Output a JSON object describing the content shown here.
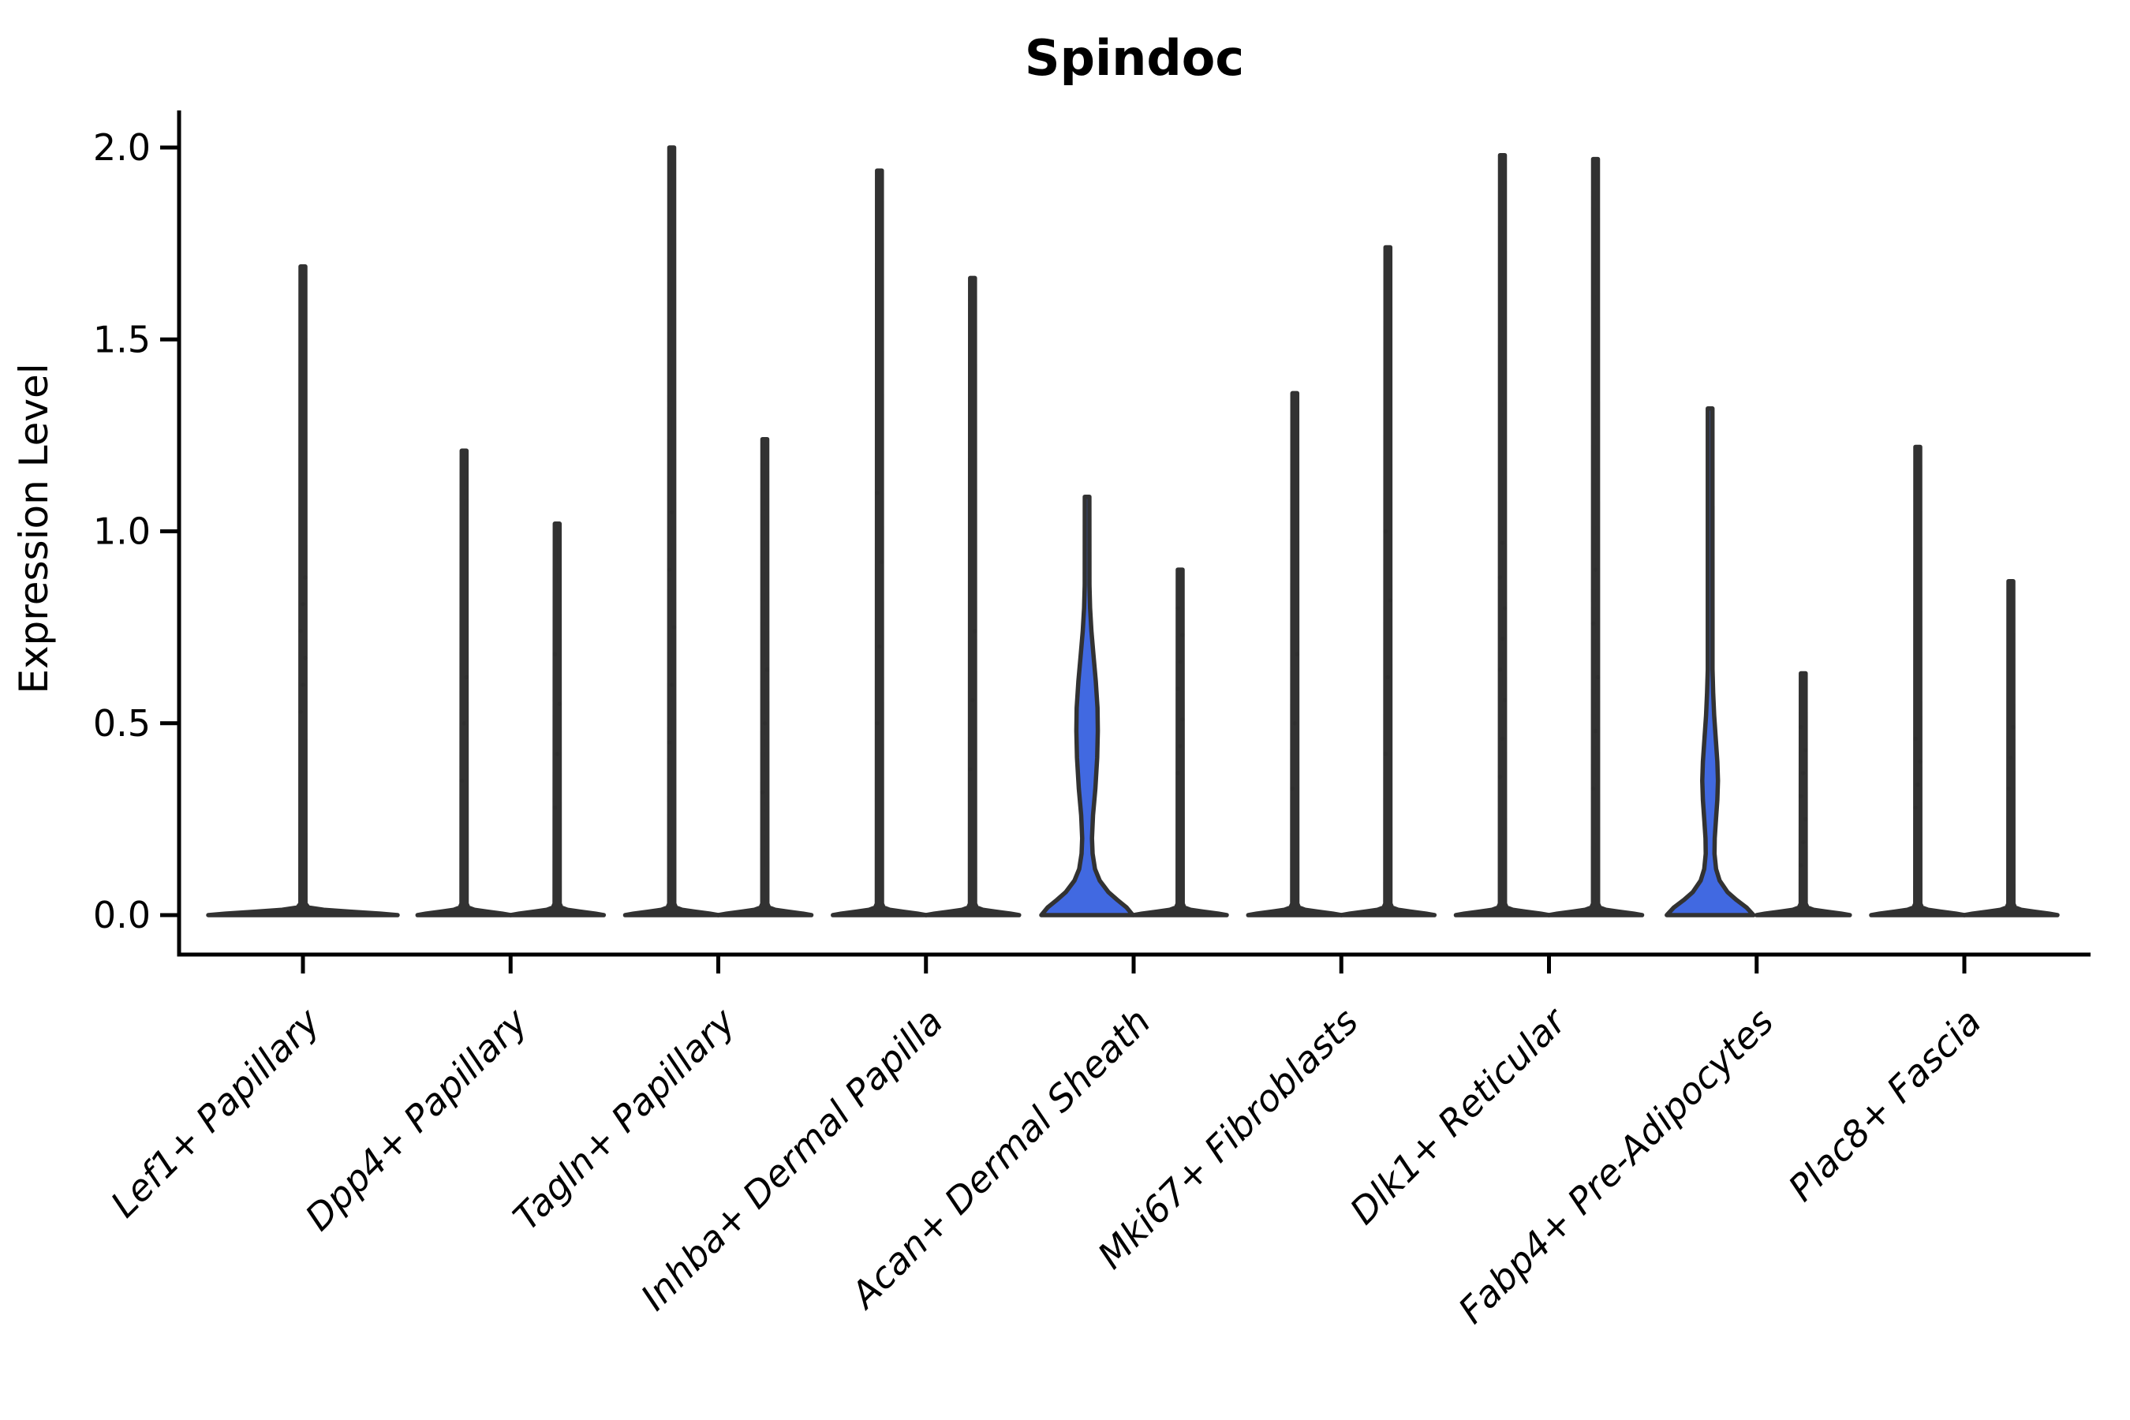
{
  "title": "Spindoc",
  "y_axis": {
    "label": "Expression Level"
  },
  "chart_data": {
    "type": "violin",
    "title": "Spindoc",
    "xlabel": "",
    "ylabel": "Expression Level",
    "ylim": [
      0,
      2.05
    ],
    "yticks": [
      {
        "value": 0.0,
        "label": "0.0"
      },
      {
        "value": 0.5,
        "label": "0.5"
      },
      {
        "value": 1.0,
        "label": "1.0"
      },
      {
        "value": 1.5,
        "label": "1.5"
      },
      {
        "value": 2.0,
        "label": "2.0"
      }
    ],
    "grid": false,
    "legend": "none",
    "categories": [
      "Lef1+ Papillary",
      "Dpp4+ Papillary",
      "Tagln+ Papillary",
      "Inhba+ Dermal Papilla",
      "Acan+ Dermal Sheath",
      "Mki67+ Fibroblasts",
      "Dlk1+ Reticular",
      "Fabp4+ Pre-Adipocytes",
      "Plac8+ Fascia"
    ],
    "colors": {
      "violin_fill": "#4169E1",
      "violin_stroke": "#323232",
      "axis": "#000000",
      "jitter_point": "#2B2B2B"
    },
    "violins": [
      {
        "category_index": 0,
        "side": "center",
        "shape": "flat",
        "half_width": 120,
        "max": 1.69,
        "filled": false,
        "points": [
          0.53,
          0.6,
          0.67,
          0.74,
          0.81,
          0.88
        ]
      },
      {
        "category_index": 1,
        "side": "left",
        "shape": "flat",
        "half_width": 59,
        "max": 1.21,
        "filled": false,
        "points": [
          0.35,
          0.5,
          0.62
        ]
      },
      {
        "category_index": 1,
        "side": "right",
        "shape": "flat",
        "half_width": 59,
        "max": 1.02,
        "filled": false,
        "points": [
          0.28,
          0.42,
          0.55,
          0.68
        ]
      },
      {
        "category_index": 2,
        "side": "left",
        "shape": "flat",
        "half_width": 59,
        "max": 2.0,
        "filled": false,
        "points": [
          0.45,
          0.6,
          0.75,
          0.9,
          1.05
        ]
      },
      {
        "category_index": 2,
        "side": "right",
        "shape": "flat",
        "half_width": 59,
        "max": 1.24,
        "filled": false,
        "points": [
          0.32,
          0.5,
          0.64
        ]
      },
      {
        "category_index": 3,
        "side": "left",
        "shape": "flat",
        "half_width": 59,
        "max": 1.94,
        "filled": false,
        "points": [
          0.5,
          0.7,
          0.92,
          1.1
        ]
      },
      {
        "category_index": 3,
        "side": "right",
        "shape": "flat",
        "half_width": 59,
        "max": 1.66,
        "filled": false,
        "points": [
          0.38,
          0.56,
          0.74
        ]
      },
      {
        "category_index": 4,
        "side": "left",
        "shape": "profiled",
        "max": 1.09,
        "filled": true,
        "profile": [
          [
            0,
            58
          ],
          [
            0.02,
            50
          ],
          [
            0.04,
            38
          ],
          [
            0.06,
            27
          ],
          [
            0.09,
            16
          ],
          [
            0.12,
            10
          ],
          [
            0.16,
            7
          ],
          [
            0.2,
            6.2
          ],
          [
            0.26,
            7.5
          ],
          [
            0.33,
            10.5
          ],
          [
            0.41,
            12.8
          ],
          [
            0.48,
            13.6
          ],
          [
            0.54,
            13.2
          ],
          [
            0.61,
            11
          ],
          [
            0.68,
            8
          ],
          [
            0.74,
            5.5
          ],
          [
            0.8,
            3.8
          ],
          [
            0.86,
            3
          ],
          [
            1.09,
            2.9
          ]
        ],
        "points": []
      },
      {
        "category_index": 4,
        "side": "right",
        "shape": "flat",
        "half_width": 59,
        "max": 0.9,
        "filled": false,
        "points": [
          0.37,
          0.44,
          0.51,
          0.59,
          0.66,
          0.73,
          0.8
        ]
      },
      {
        "category_index": 5,
        "side": "left",
        "shape": "flat",
        "half_width": 59,
        "max": 1.36,
        "filled": false,
        "points": [
          0.33,
          0.5,
          0.68
        ]
      },
      {
        "category_index": 5,
        "side": "right",
        "shape": "flat",
        "half_width": 59,
        "max": 1.74,
        "filled": false,
        "points": [
          0.42,
          0.62,
          0.82,
          1.0
        ]
      },
      {
        "category_index": 6,
        "side": "left",
        "shape": "flat",
        "half_width": 59,
        "max": 1.98,
        "filled": false,
        "points": [
          0.36,
          0.46,
          0.56,
          0.64,
          0.72,
          0.8,
          0.88,
          0.97
        ]
      },
      {
        "category_index": 6,
        "side": "right",
        "shape": "flat",
        "half_width": 59,
        "max": 1.97,
        "filled": false,
        "points": [
          0.33,
          0.48,
          0.62,
          0.76,
          0.9
        ]
      },
      {
        "category_index": 7,
        "side": "left",
        "shape": "profiled",
        "max": 1.32,
        "filled": true,
        "profile": [
          [
            0,
            55
          ],
          [
            0.02,
            46
          ],
          [
            0.04,
            33
          ],
          [
            0.06,
            22
          ],
          [
            0.09,
            12
          ],
          [
            0.12,
            7.5
          ],
          [
            0.16,
            5.6
          ],
          [
            0.2,
            5.8
          ],
          [
            0.25,
            7.4
          ],
          [
            0.3,
            9.2
          ],
          [
            0.35,
            9.9
          ],
          [
            0.4,
            9.2
          ],
          [
            0.46,
            7.2
          ],
          [
            0.52,
            5.2
          ],
          [
            0.58,
            3.8
          ],
          [
            0.64,
            3
          ],
          [
            1.32,
            2.9
          ]
        ],
        "points": []
      },
      {
        "category_index": 7,
        "side": "right",
        "shape": "flat",
        "half_width": 59,
        "max": 0.63,
        "filled": false,
        "points": [
          0.13,
          0.19,
          0.25,
          0.31,
          0.37,
          0.43,
          0.49
        ]
      },
      {
        "category_index": 8,
        "side": "left",
        "shape": "flat",
        "half_width": 59,
        "max": 1.22,
        "filled": false,
        "points": [
          0.28,
          0.34,
          0.4,
          0.46
        ]
      },
      {
        "category_index": 8,
        "side": "right",
        "shape": "flat",
        "half_width": 59,
        "max": 0.87,
        "filled": false,
        "points": [
          0.33,
          0.41,
          0.49
        ]
      }
    ]
  }
}
